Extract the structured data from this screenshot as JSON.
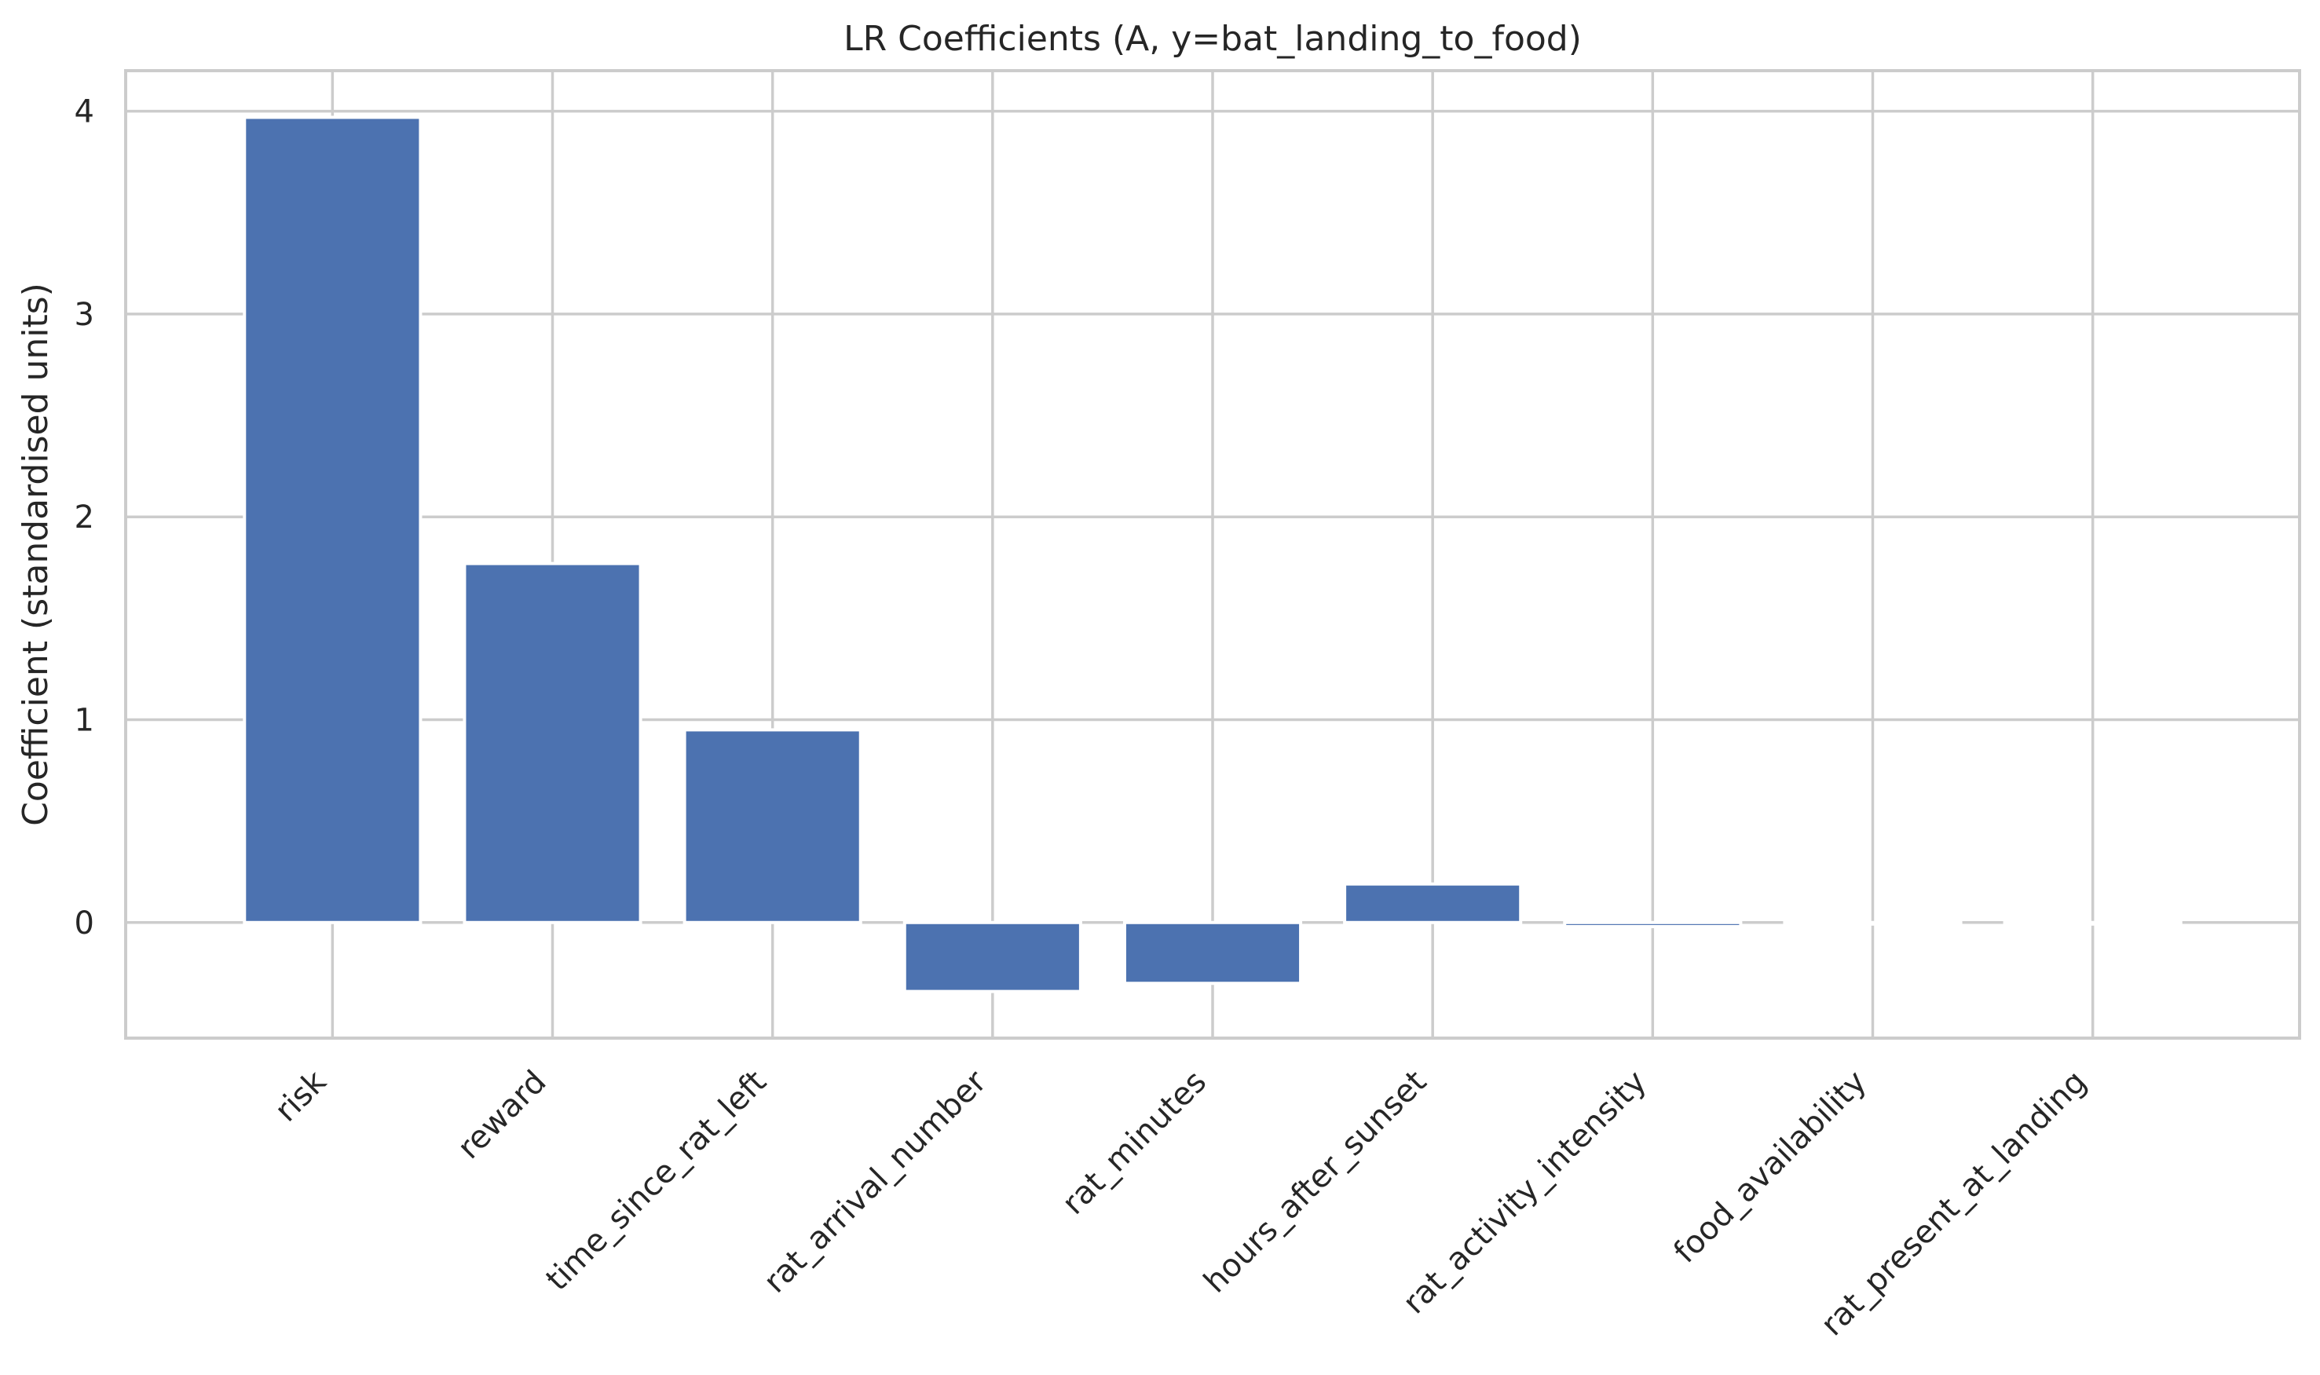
{
  "chart_data": {
    "type": "bar",
    "title": "LR Coefficients (A, y=bat_landing_to_food)",
    "xlabel": "",
    "ylabel": "Coefficient (standardised units)",
    "categories": [
      "risk",
      "reward",
      "time_since_rat_left",
      "rat_arrival_number",
      "rat_minutes",
      "hours_after_sunset",
      "rat_activity_intensity",
      "food_availability",
      "rat_present_at_landing"
    ],
    "values": [
      3.97,
      1.77,
      0.95,
      -0.34,
      -0.3,
      0.19,
      -0.02,
      0.0,
      0.0
    ],
    "ylim": [
      -0.57,
      4.2
    ],
    "yticks": [
      0,
      1,
      2,
      3,
      4
    ],
    "grid": true,
    "bar_color": "#4c72b0",
    "grid_color": "#cccccc"
  }
}
